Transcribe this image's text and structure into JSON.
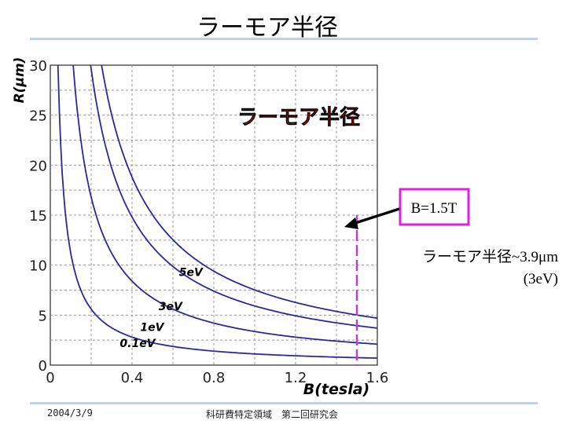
{
  "slide": {
    "title": "ラーモア半径",
    "footer_date": "2004/3/9",
    "footer_event": "科研費特定領域　第二回研究会"
  },
  "annotation": {
    "field_box": "B=1.5T",
    "radius_line": "ラーモア半径~3.9μm",
    "energy_line": "(3eV)",
    "box_color": "#e020e0",
    "marker_color": "#c040c0"
  },
  "chart_data": {
    "type": "line",
    "title": "ラーモア半径",
    "title_color": "#ff0000",
    "xlabel": "B(tesla)",
    "ylabel": "R(μm)",
    "xlim": [
      0,
      1.6
    ],
    "ylim": [
      0,
      30
    ],
    "x_ticks": [
      "0",
      "0.4",
      "0.8",
      "1.2",
      "1.6"
    ],
    "y_ticks": [
      "0",
      "5",
      "10",
      "15",
      "20",
      "25",
      "30"
    ],
    "grid": true,
    "line_color": "#2828a0",
    "series": [
      {
        "name": "0.1eV",
        "values": [
          [
            0.035,
            30
          ],
          [
            0.05,
            21.3
          ],
          [
            0.1,
            10.7
          ],
          [
            0.2,
            5.3
          ],
          [
            0.4,
            2.7
          ],
          [
            0.8,
            1.3
          ],
          [
            1.2,
            0.9
          ],
          [
            1.6,
            0.7
          ]
        ]
      },
      {
        "name": "1eV",
        "values": [
          [
            0.11,
            30
          ],
          [
            0.15,
            22.5
          ],
          [
            0.2,
            16.9
          ],
          [
            0.4,
            8.4
          ],
          [
            0.8,
            4.2
          ],
          [
            1.2,
            2.8
          ],
          [
            1.6,
            2.1
          ]
        ]
      },
      {
        "name": "3eV",
        "values": [
          [
            0.195,
            30
          ],
          [
            0.3,
            19.5
          ],
          [
            0.4,
            14.6
          ],
          [
            0.6,
            9.7
          ],
          [
            0.8,
            7.3
          ],
          [
            1.2,
            4.9
          ],
          [
            1.6,
            3.7
          ]
        ]
      },
      {
        "name": "5eV",
        "values": [
          [
            0.25,
            30
          ],
          [
            0.4,
            18.8
          ],
          [
            0.6,
            12.6
          ],
          [
            0.8,
            9.4
          ],
          [
            1.0,
            7.5
          ],
          [
            1.2,
            6.3
          ],
          [
            1.6,
            4.7
          ]
        ]
      }
    ],
    "marker": {
      "x": 1.5,
      "ylim": [
        0,
        15
      ]
    }
  }
}
